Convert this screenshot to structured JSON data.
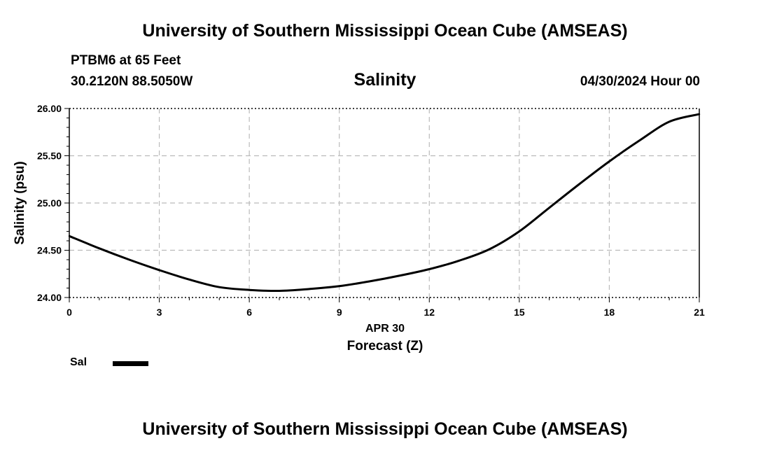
{
  "header": {
    "title": "University of Southern Mississippi Ocean Cube (AMSEAS)",
    "station": "PTBM6 at 65 Feet",
    "coords": "30.2120N  88.5050W",
    "datetime": "04/30/2024 Hour 00"
  },
  "footer": {
    "title": "University of Southern Mississippi Ocean Cube (AMSEAS)"
  },
  "legend": {
    "label": "Sal",
    "color": "#000000"
  },
  "chart_data": {
    "type": "line",
    "title": "Salinity",
    "xlabel": "Forecast (Z)",
    "xsublabel": "APR 30",
    "ylabel": "Salinity (psu)",
    "xlim": [
      0,
      21
    ],
    "ylim": [
      24.0,
      26.0
    ],
    "xticks": [
      0,
      3,
      6,
      9,
      12,
      15,
      18,
      21
    ],
    "xtick_labels": [
      "0",
      "3",
      "6",
      "9",
      "12",
      "15",
      "18",
      "21"
    ],
    "yticks": [
      24.0,
      24.5,
      25.0,
      25.5,
      26.0
    ],
    "ytick_labels": [
      "24.00",
      "24.50",
      "25.00",
      "25.50",
      "26.00"
    ],
    "grid": true,
    "series": [
      {
        "name": "Sal",
        "x": [
          0,
          1,
          2,
          3,
          4,
          5,
          6,
          7,
          8,
          9,
          10,
          11,
          12,
          13,
          14,
          15,
          16,
          17,
          18,
          19,
          20,
          21
        ],
        "values": [
          24.65,
          24.52,
          24.4,
          24.29,
          24.19,
          24.11,
          24.08,
          24.07,
          24.09,
          24.12,
          24.17,
          24.23,
          24.3,
          24.39,
          24.51,
          24.7,
          24.95,
          25.2,
          25.44,
          25.66,
          25.86,
          25.94
        ]
      }
    ]
  }
}
